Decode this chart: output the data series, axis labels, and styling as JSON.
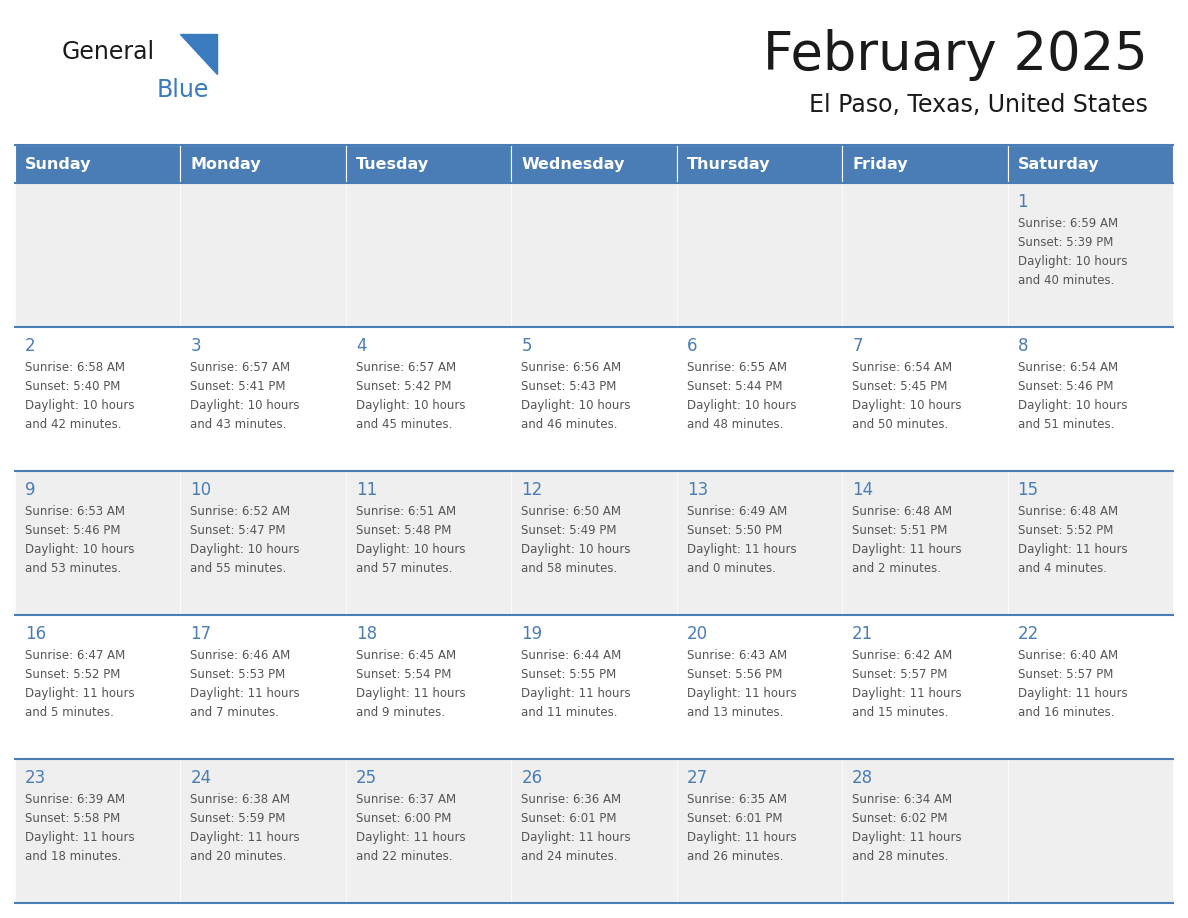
{
  "title": "February 2025",
  "subtitle": "El Paso, Texas, United States",
  "header_bg": "#4A7DB5",
  "header_text_color": "#FFFFFF",
  "day_names": [
    "Sunday",
    "Monday",
    "Tuesday",
    "Wednesday",
    "Thursday",
    "Friday",
    "Saturday"
  ],
  "week_bg_odd": "#EFEFEF",
  "week_bg_even": "#FFFFFF",
  "cell_border_color": "#4A7DB5",
  "day_number_color": "#4A7DB5",
  "text_color": "#555555",
  "title_color": "#1a1a1a",
  "logo_general_color": "#1a1a1a",
  "logo_blue_color": "#3a7abf",
  "calendar": [
    [
      {
        "day": 0,
        "info": ""
      },
      {
        "day": 0,
        "info": ""
      },
      {
        "day": 0,
        "info": ""
      },
      {
        "day": 0,
        "info": ""
      },
      {
        "day": 0,
        "info": ""
      },
      {
        "day": 0,
        "info": ""
      },
      {
        "day": 1,
        "info": "Sunrise: 6:59 AM\nSunset: 5:39 PM\nDaylight: 10 hours\nand 40 minutes."
      }
    ],
    [
      {
        "day": 2,
        "info": "Sunrise: 6:58 AM\nSunset: 5:40 PM\nDaylight: 10 hours\nand 42 minutes."
      },
      {
        "day": 3,
        "info": "Sunrise: 6:57 AM\nSunset: 5:41 PM\nDaylight: 10 hours\nand 43 minutes."
      },
      {
        "day": 4,
        "info": "Sunrise: 6:57 AM\nSunset: 5:42 PM\nDaylight: 10 hours\nand 45 minutes."
      },
      {
        "day": 5,
        "info": "Sunrise: 6:56 AM\nSunset: 5:43 PM\nDaylight: 10 hours\nand 46 minutes."
      },
      {
        "day": 6,
        "info": "Sunrise: 6:55 AM\nSunset: 5:44 PM\nDaylight: 10 hours\nand 48 minutes."
      },
      {
        "day": 7,
        "info": "Sunrise: 6:54 AM\nSunset: 5:45 PM\nDaylight: 10 hours\nand 50 minutes."
      },
      {
        "day": 8,
        "info": "Sunrise: 6:54 AM\nSunset: 5:46 PM\nDaylight: 10 hours\nand 51 minutes."
      }
    ],
    [
      {
        "day": 9,
        "info": "Sunrise: 6:53 AM\nSunset: 5:46 PM\nDaylight: 10 hours\nand 53 minutes."
      },
      {
        "day": 10,
        "info": "Sunrise: 6:52 AM\nSunset: 5:47 PM\nDaylight: 10 hours\nand 55 minutes."
      },
      {
        "day": 11,
        "info": "Sunrise: 6:51 AM\nSunset: 5:48 PM\nDaylight: 10 hours\nand 57 minutes."
      },
      {
        "day": 12,
        "info": "Sunrise: 6:50 AM\nSunset: 5:49 PM\nDaylight: 10 hours\nand 58 minutes."
      },
      {
        "day": 13,
        "info": "Sunrise: 6:49 AM\nSunset: 5:50 PM\nDaylight: 11 hours\nand 0 minutes."
      },
      {
        "day": 14,
        "info": "Sunrise: 6:48 AM\nSunset: 5:51 PM\nDaylight: 11 hours\nand 2 minutes."
      },
      {
        "day": 15,
        "info": "Sunrise: 6:48 AM\nSunset: 5:52 PM\nDaylight: 11 hours\nand 4 minutes."
      }
    ],
    [
      {
        "day": 16,
        "info": "Sunrise: 6:47 AM\nSunset: 5:52 PM\nDaylight: 11 hours\nand 5 minutes."
      },
      {
        "day": 17,
        "info": "Sunrise: 6:46 AM\nSunset: 5:53 PM\nDaylight: 11 hours\nand 7 minutes."
      },
      {
        "day": 18,
        "info": "Sunrise: 6:45 AM\nSunset: 5:54 PM\nDaylight: 11 hours\nand 9 minutes."
      },
      {
        "day": 19,
        "info": "Sunrise: 6:44 AM\nSunset: 5:55 PM\nDaylight: 11 hours\nand 11 minutes."
      },
      {
        "day": 20,
        "info": "Sunrise: 6:43 AM\nSunset: 5:56 PM\nDaylight: 11 hours\nand 13 minutes."
      },
      {
        "day": 21,
        "info": "Sunrise: 6:42 AM\nSunset: 5:57 PM\nDaylight: 11 hours\nand 15 minutes."
      },
      {
        "day": 22,
        "info": "Sunrise: 6:40 AM\nSunset: 5:57 PM\nDaylight: 11 hours\nand 16 minutes."
      }
    ],
    [
      {
        "day": 23,
        "info": "Sunrise: 6:39 AM\nSunset: 5:58 PM\nDaylight: 11 hours\nand 18 minutes."
      },
      {
        "day": 24,
        "info": "Sunrise: 6:38 AM\nSunset: 5:59 PM\nDaylight: 11 hours\nand 20 minutes."
      },
      {
        "day": 25,
        "info": "Sunrise: 6:37 AM\nSunset: 6:00 PM\nDaylight: 11 hours\nand 22 minutes."
      },
      {
        "day": 26,
        "info": "Sunrise: 6:36 AM\nSunset: 6:01 PM\nDaylight: 11 hours\nand 24 minutes."
      },
      {
        "day": 27,
        "info": "Sunrise: 6:35 AM\nSunset: 6:01 PM\nDaylight: 11 hours\nand 26 minutes."
      },
      {
        "day": 28,
        "info": "Sunrise: 6:34 AM\nSunset: 6:02 PM\nDaylight: 11 hours\nand 28 minutes."
      },
      {
        "day": 0,
        "info": ""
      }
    ]
  ]
}
